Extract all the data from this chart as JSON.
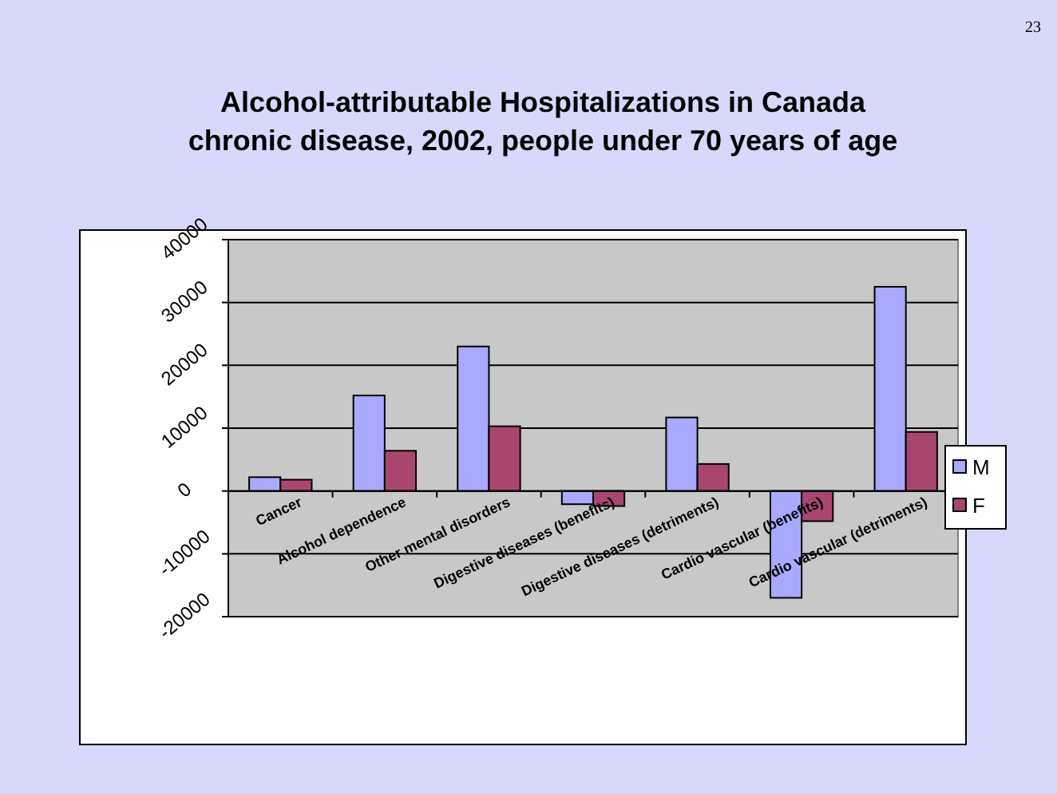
{
  "chart_data": {
    "type": "bar",
    "title": "Alcohol-attributable Hospitalizations in Canada\nchronic disease, 2002, people under 70 years of age",
    "categories": [
      "Cancer",
      "Alcohol dependence",
      "Other mental disorders",
      "Digestive diseases (benefits)",
      "Digestive diseases (detriments)",
      "Cardio vascular (benefits)",
      "Cardio vascular (detriments)"
    ],
    "series": [
      {
        "name": "M",
        "color": "#a9a9ff",
        "values": [
          2200,
          15200,
          23000,
          -2100,
          11700,
          -17000,
          32500
        ]
      },
      {
        "name": "F",
        "color": "#a8466f",
        "values": [
          1800,
          6400,
          10300,
          -2400,
          4300,
          -4800,
          9400
        ]
      }
    ],
    "ylim": [
      -20000,
      40000
    ],
    "yticks": [
      -20000,
      -10000,
      0,
      10000,
      20000,
      30000,
      40000
    ],
    "grid": "y",
    "legend": "right",
    "annotations": [
      "23"
    ]
  }
}
